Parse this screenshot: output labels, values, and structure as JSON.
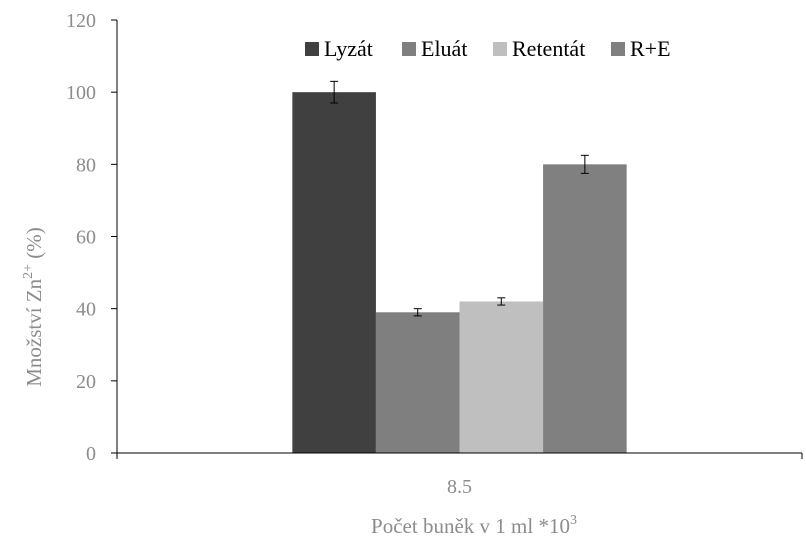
{
  "chart_data": {
    "type": "bar",
    "categories": [
      "8.5"
    ],
    "series": [
      {
        "name": "Lyzát",
        "values": [
          100
        ],
        "error": [
          3
        ],
        "color": "#404040"
      },
      {
        "name": "Eluát",
        "values": [
          39
        ],
        "error": [
          1
        ],
        "color": "#7f7f7f"
      },
      {
        "name": "Retentát",
        "values": [
          42
        ],
        "error": [
          1
        ],
        "color": "#bfbfbf"
      },
      {
        "name": "R+E",
        "values": [
          80
        ],
        "error": [
          2.5
        ],
        "color": "#808080"
      }
    ],
    "xlabel": "Počet buněk v 1 ml *10",
    "xlabel_superscript": "3",
    "ylabel": "Množství Zn",
    "ylabel_superscript": "2+",
    "ylabel_suffix": " (%)",
    "ylim": [
      0,
      120
    ],
    "yticks": [
      0,
      20,
      40,
      60,
      80,
      100,
      120
    ],
    "grid": false,
    "legend_position": "top-right"
  }
}
